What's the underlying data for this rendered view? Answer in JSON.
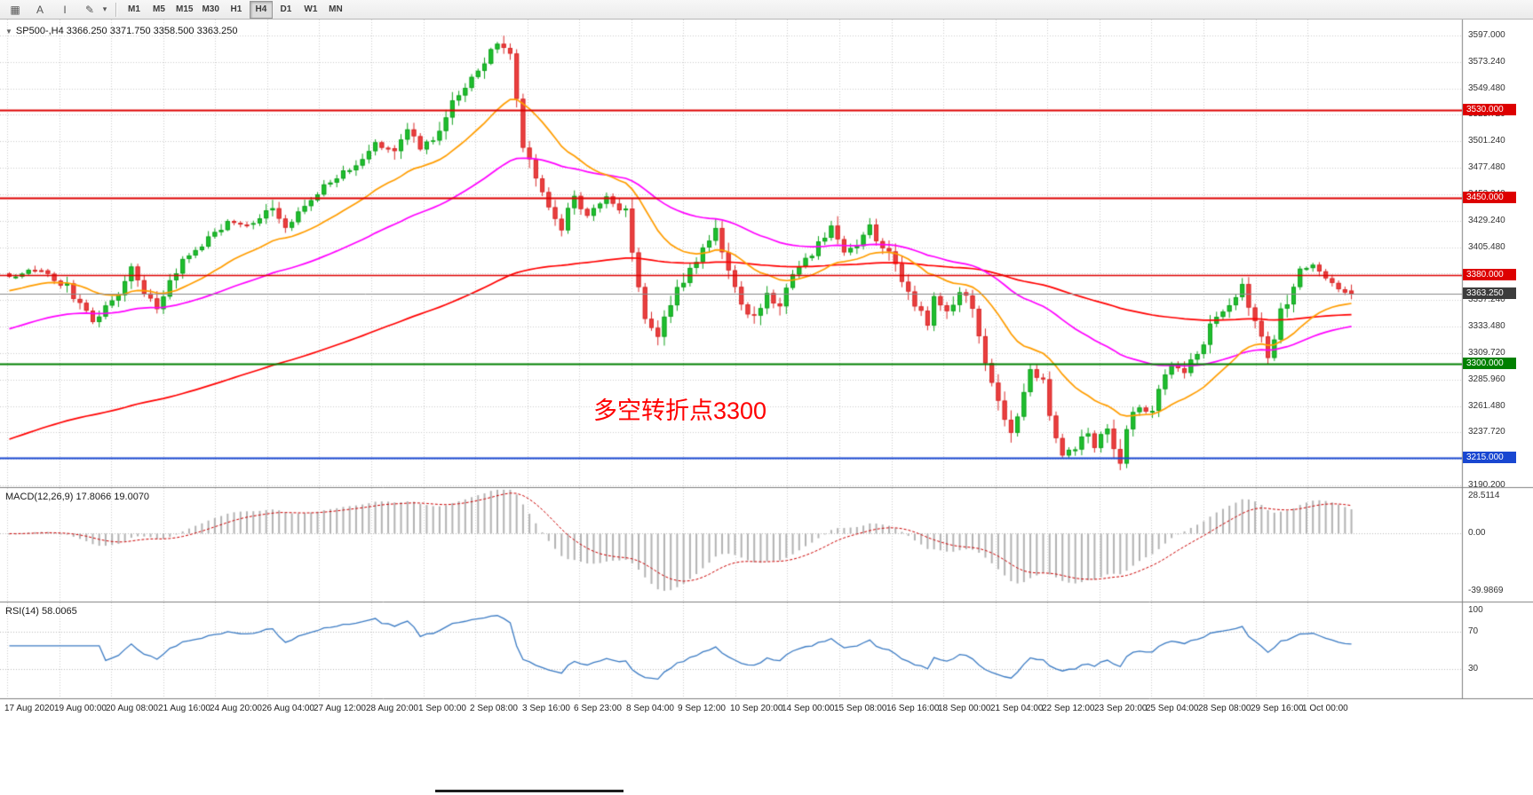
{
  "toolbar": {
    "icons": [
      {
        "name": "grid-icon",
        "glyph": "▦"
      },
      {
        "name": "text-label-icon",
        "glyph": "A"
      },
      {
        "name": "text-cursor-icon",
        "glyph": "I"
      },
      {
        "name": "crayon-icon",
        "glyph": "✎"
      },
      {
        "name": "chevron-down-icon",
        "glyph": "▾"
      }
    ],
    "timeframes": [
      "M1",
      "M5",
      "M15",
      "M30",
      "H1",
      "H4",
      "D1",
      "W1",
      "MN"
    ],
    "active_timeframe": "H4"
  },
  "chart": {
    "symbol_line": "SP500-,H4  3366.250 3371.750 3358.500 3363.250",
    "annotation": {
      "text": "多空转折点3300",
      "color": "#ff0000"
    },
    "current_price": {
      "value": 3363.25,
      "label": "3363.250",
      "color": "#3c3c3c"
    }
  },
  "chart_data": {
    "type": "candlestick",
    "symbol": "SP500-",
    "timeframe": "H4",
    "ohlc_last": {
      "open": 3366.25,
      "high": 3371.75,
      "low": 3358.5,
      "close": 3363.25
    },
    "price_axis": {
      "min": 3190.2,
      "max": 3597.0,
      "ticks": [
        "3597.000",
        "3573.240",
        "3549.480",
        "3525.720",
        "3501.240",
        "3477.480",
        "3453.240",
        "3429.240",
        "3405.480",
        "3381.000",
        "3357.240",
        "3333.480",
        "3309.720",
        "3285.960",
        "3261.480",
        "3237.720",
        "3213.960",
        "3190.200"
      ]
    },
    "time_labels": [
      "17 Aug 2020",
      "19 Aug 00:00",
      "20 Aug 08:00",
      "21 Aug 16:00",
      "24 Aug 20:00",
      "26 Aug 04:00",
      "27 Aug 12:00",
      "28 Aug 20:00",
      "1 Sep 00:00",
      "2 Sep 08:00",
      "3 Sep 16:00",
      "6 Sep 23:00",
      "8 Sep 04:00",
      "9 Sep 12:00",
      "10 Sep 20:00",
      "14 Sep 00:00",
      "15 Sep 08:00",
      "16 Sep 16:00",
      "18 Sep 00:00",
      "21 Sep 04:00",
      "22 Sep 12:00",
      "23 Sep 20:00",
      "25 Sep 04:00",
      "28 Sep 08:00",
      "29 Sep 16:00",
      "1 Oct 00:00"
    ],
    "candle_count": 210,
    "up_color": "#1fbf2f",
    "up_border": "#12a31f",
    "down_color": "#ea4040",
    "down_border": "#d92b2b",
    "close_anchors": [
      [
        0,
        3378
      ],
      [
        4,
        3386
      ],
      [
        9,
        3370
      ],
      [
        13,
        3338
      ],
      [
        17,
        3362
      ],
      [
        19,
        3384
      ],
      [
        21,
        3363
      ],
      [
        23,
        3352
      ],
      [
        27,
        3393
      ],
      [
        31,
        3412
      ],
      [
        34,
        3430
      ],
      [
        38,
        3424
      ],
      [
        41,
        3443
      ],
      [
        43,
        3421
      ],
      [
        47,
        3450
      ],
      [
        50,
        3465
      ],
      [
        54,
        3481
      ],
      [
        57,
        3500
      ],
      [
        60,
        3489
      ],
      [
        62,
        3512
      ],
      [
        64,
        3494
      ],
      [
        67,
        3510
      ],
      [
        70,
        3545
      ],
      [
        74,
        3572
      ],
      [
        75,
        3585
      ],
      [
        77,
        3591
      ],
      [
        78,
        3577
      ],
      [
        80,
        3500
      ],
      [
        82,
        3466
      ],
      [
        84,
        3446
      ],
      [
        86,
        3420
      ],
      [
        88,
        3450
      ],
      [
        90,
        3436
      ],
      [
        93,
        3450
      ],
      [
        96,
        3436
      ],
      [
        97,
        3398
      ],
      [
        99,
        3345
      ],
      [
        101,
        3326
      ],
      [
        103,
        3352
      ],
      [
        106,
        3388
      ],
      [
        109,
        3412
      ],
      [
        110,
        3420
      ],
      [
        112,
        3388
      ],
      [
        114,
        3352
      ],
      [
        116,
        3340
      ],
      [
        118,
        3366
      ],
      [
        120,
        3350
      ],
      [
        122,
        3382
      ],
      [
        124,
        3394
      ],
      [
        126,
        3408
      ],
      [
        128,
        3421
      ],
      [
        130,
        3398
      ],
      [
        132,
        3410
      ],
      [
        134,
        3423
      ],
      [
        137,
        3398
      ],
      [
        139,
        3375
      ],
      [
        141,
        3352
      ],
      [
        143,
        3338
      ],
      [
        144,
        3358
      ],
      [
        146,
        3346
      ],
      [
        148,
        3368
      ],
      [
        150,
        3348
      ],
      [
        151,
        3322
      ],
      [
        153,
        3280
      ],
      [
        155,
        3252
      ],
      [
        156,
        3236
      ],
      [
        158,
        3272
      ],
      [
        159,
        3296
      ],
      [
        161,
        3285
      ],
      [
        162,
        3250
      ],
      [
        164,
        3218
      ],
      [
        166,
        3225
      ],
      [
        168,
        3240
      ],
      [
        169,
        3226
      ],
      [
        171,
        3240
      ],
      [
        173,
        3210
      ],
      [
        174,
        3245
      ],
      [
        176,
        3262
      ],
      [
        178,
        3256
      ],
      [
        180,
        3290
      ],
      [
        181,
        3300
      ],
      [
        183,
        3292
      ],
      [
        185,
        3312
      ],
      [
        187,
        3332
      ],
      [
        188,
        3342
      ],
      [
        190,
        3356
      ],
      [
        192,
        3370
      ],
      [
        193,
        3350
      ],
      [
        195,
        3328
      ],
      [
        196,
        3308
      ],
      [
        198,
        3345
      ],
      [
        200,
        3372
      ],
      [
        201,
        3385
      ],
      [
        203,
        3390
      ],
      [
        205,
        3380
      ],
      [
        206,
        3372
      ],
      [
        208,
        3366
      ],
      [
        209,
        3363.25
      ]
    ],
    "moving_averages": [
      {
        "name": "slow-ma",
        "period": 150,
        "color": "#ff0000",
        "seed": 3230
      },
      {
        "name": "medium-ma",
        "period": 55,
        "color": "#ff00ff",
        "seed": 3330
      },
      {
        "name": "fast-ma",
        "period": 21,
        "color": "#ff9d00",
        "seed": 3365
      }
    ],
    "hlines": [
      {
        "value": 3530.0,
        "label": "3530.000",
        "color": "#dd0000",
        "width": 2
      },
      {
        "value": 3450.0,
        "label": "3450.000",
        "color": "#dd0000",
        "width": 2
      },
      {
        "value": 3380.0,
        "label": "3380.000",
        "color": "#dd0000",
        "width": 1.4
      },
      {
        "value": 3300.0,
        "label": "3300.000",
        "color": "#008000",
        "width": 2
      },
      {
        "value": 3215.0,
        "label": "3215.000",
        "color": "#1947d1",
        "width": 2
      }
    ],
    "indicators": {
      "macd": {
        "label": "MACD(12,26,9) 17.8066 19.0070",
        "fast": 12,
        "slow": 26,
        "signal": 9,
        "axis_labels": [
          "28.5114",
          "0.00",
          "-39.9869"
        ],
        "range": [
          -46,
          30.5
        ],
        "histogram_color": "#b3b3b3",
        "signal_color": "#cc0000"
      },
      "rsi": {
        "label": "RSI(14) 58.0065",
        "period": 14,
        "axis_labels": [
          "100",
          "70",
          "30"
        ],
        "levels": [
          70,
          30
        ],
        "line_color": "#3b7bc4"
      }
    }
  }
}
